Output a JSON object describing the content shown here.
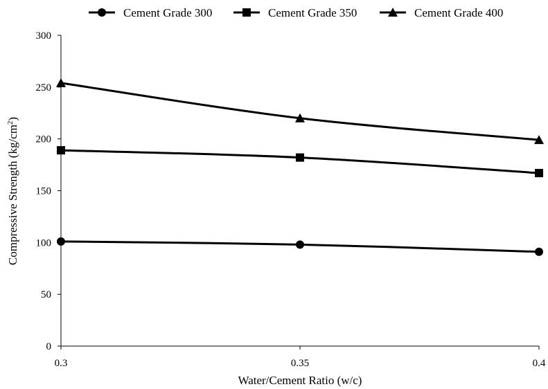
{
  "chart_data": {
    "type": "line",
    "x": [
      0.3,
      0.35,
      0.4
    ],
    "x_tick_labels": [
      "0.3",
      "0.35",
      "0.4"
    ],
    "y_tick_labels": [
      "0",
      "50",
      "100",
      "150",
      "200",
      "250",
      "300"
    ],
    "xlabel": "Water/Cement Ratio (w/c)",
    "ylabel": "Compressive  Strength (kg/cm²)",
    "ylim": [
      0,
      300
    ],
    "xlim": [
      0.3,
      0.4
    ],
    "grid": false,
    "legend_position": "top",
    "series": [
      {
        "name": "Cement Grade 300",
        "marker": "circle",
        "values": [
          101,
          98,
          91
        ]
      },
      {
        "name": "Cement Grade 350",
        "marker": "square",
        "values": [
          189,
          182,
          167
        ]
      },
      {
        "name": "Cement Grade 400",
        "marker": "triangle",
        "values": [
          254,
          220,
          199
        ]
      }
    ],
    "line_color": "#000000"
  }
}
